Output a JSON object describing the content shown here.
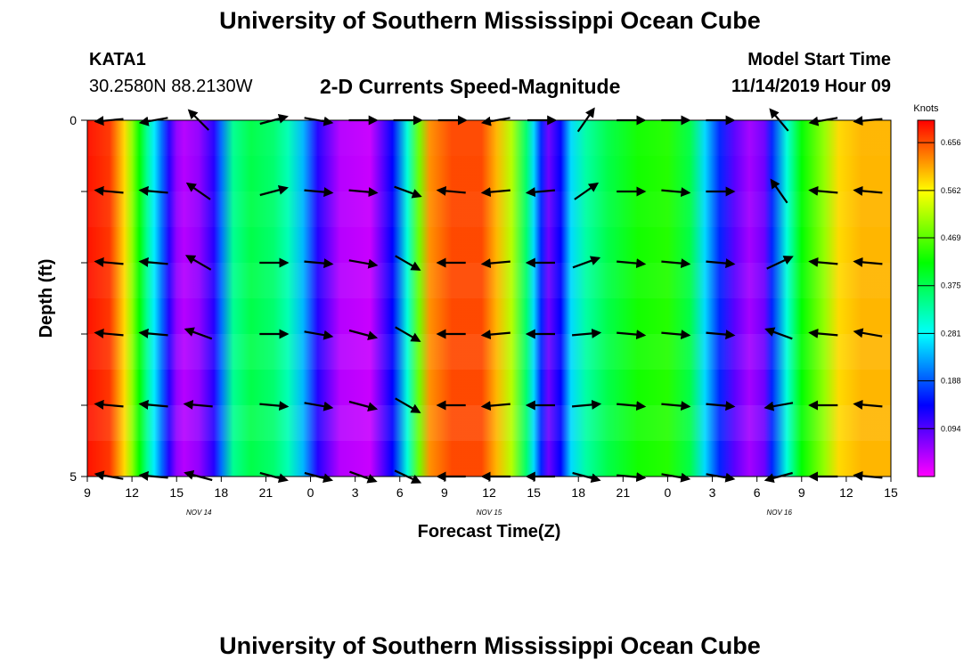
{
  "header": {
    "title": "University of Southern Mississippi Ocean Cube",
    "station": "KATA1",
    "coords": "30.2580N 88.2130W",
    "chart_title": "2-D Currents Speed-Magnitude",
    "model_label": "Model Start Time",
    "model_time": "11/14/2019 Hour 09"
  },
  "footer": {
    "title": "University of Southern Mississippi Ocean Cube"
  },
  "chart_data": {
    "type": "heatmap",
    "title": "2-D Currents Speed-Magnitude",
    "xlabel": "Forecast Time(Z)",
    "ylabel": "Depth (ft)",
    "x_hours": [
      0,
      54
    ],
    "x_ticks": [
      "9",
      "12",
      "15",
      "18",
      "21",
      "0",
      "3",
      "6",
      "9",
      "12",
      "15",
      "18",
      "21",
      "0",
      "3",
      "6",
      "9",
      "12",
      "15"
    ],
    "date_labels": [
      {
        "label": "NOV 14",
        "hour": 7.5
      },
      {
        "label": "NOV 15",
        "hour": 27
      },
      {
        "label": "NOV 16",
        "hour": 46.5
      }
    ],
    "y_ticks": [
      0,
      5
    ],
    "ylim": [
      0,
      5
    ],
    "colorbar": {
      "title": "Knots",
      "ticks": [
        0.656,
        0.562,
        0.469,
        0.375,
        0.281,
        0.188,
        0.094
      ],
      "min": 0.0,
      "max": 0.7
    },
    "speed_profile": [
      {
        "h": 0.0,
        "v": 0.69
      },
      {
        "h": 1.5,
        "v": 0.67
      },
      {
        "h": 2.5,
        "v": 0.58
      },
      {
        "h": 3.0,
        "v": 0.5
      },
      {
        "h": 3.5,
        "v": 0.42
      },
      {
        "h": 4.0,
        "v": 0.34
      },
      {
        "h": 4.5,
        "v": 0.27
      },
      {
        "h": 5.0,
        "v": 0.2
      },
      {
        "h": 5.5,
        "v": 0.12
      },
      {
        "h": 6.0,
        "v": 0.06
      },
      {
        "h": 6.5,
        "v": 0.04
      },
      {
        "h": 7.5,
        "v": 0.06
      },
      {
        "h": 8.5,
        "v": 0.12
      },
      {
        "h": 9.0,
        "v": 0.2
      },
      {
        "h": 9.8,
        "v": 0.34
      },
      {
        "h": 11.0,
        "v": 0.38
      },
      {
        "h": 12.5,
        "v": 0.36
      },
      {
        "h": 13.5,
        "v": 0.32
      },
      {
        "h": 14.5,
        "v": 0.24
      },
      {
        "h": 15.5,
        "v": 0.12
      },
      {
        "h": 17.0,
        "v": 0.04
      },
      {
        "h": 19.0,
        "v": 0.03
      },
      {
        "h": 20.5,
        "v": 0.14
      },
      {
        "h": 21.5,
        "v": 0.3
      },
      {
        "h": 22.3,
        "v": 0.48
      },
      {
        "h": 23.0,
        "v": 0.62
      },
      {
        "h": 24.5,
        "v": 0.66
      },
      {
        "h": 26.5,
        "v": 0.66
      },
      {
        "h": 27.5,
        "v": 0.6
      },
      {
        "h": 28.5,
        "v": 0.52
      },
      {
        "h": 29.5,
        "v": 0.36
      },
      {
        "h": 30.0,
        "v": 0.26
      },
      {
        "h": 30.5,
        "v": 0.16
      },
      {
        "h": 31.0,
        "v": 0.08
      },
      {
        "h": 31.8,
        "v": 0.14
      },
      {
        "h": 32.5,
        "v": 0.26
      },
      {
        "h": 33.5,
        "v": 0.33
      },
      {
        "h": 35.0,
        "v": 0.38
      },
      {
        "h": 37.0,
        "v": 0.43
      },
      {
        "h": 39.0,
        "v": 0.44
      },
      {
        "h": 40.5,
        "v": 0.38
      },
      {
        "h": 41.5,
        "v": 0.26
      },
      {
        "h": 42.5,
        "v": 0.16
      },
      {
        "h": 43.5,
        "v": 0.09
      },
      {
        "h": 44.5,
        "v": 0.05
      },
      {
        "h": 45.5,
        "v": 0.08
      },
      {
        "h": 46.0,
        "v": 0.16
      },
      {
        "h": 47.0,
        "v": 0.3
      },
      {
        "h": 48.0,
        "v": 0.42
      },
      {
        "h": 49.5,
        "v": 0.5
      },
      {
        "h": 50.5,
        "v": 0.58
      },
      {
        "h": 52.0,
        "v": 0.6
      },
      {
        "h": 54.0,
        "v": 0.6
      }
    ],
    "vector_depths": [
      0,
      1,
      2,
      3,
      4,
      5
    ],
    "vector_columns": [
      {
        "h": 1.5,
        "dir": [
          185,
          175,
          175,
          175,
          175,
          170
        ]
      },
      {
        "h": 4.5,
        "dir": [
          190,
          175,
          175,
          175,
          175,
          175
        ]
      },
      {
        "h": 7.5,
        "dir": [
          135,
          145,
          150,
          160,
          175,
          165
        ]
      },
      {
        "h": 12.5,
        "dir": [
          15,
          15,
          0,
          0,
          355,
          345
        ]
      },
      {
        "h": 15.5,
        "dir": [
          350,
          355,
          355,
          350,
          350,
          345
        ]
      },
      {
        "h": 18.5,
        "dir": [
          0,
          355,
          350,
          345,
          345,
          340
        ]
      },
      {
        "h": 21.5,
        "dir": [
          0,
          340,
          330,
          330,
          330,
          335
        ]
      },
      {
        "h": 24.5,
        "dir": [
          0,
          175,
          180,
          180,
          180,
          180
        ]
      },
      {
        "h": 27.5,
        "dir": [
          190,
          185,
          185,
          185,
          185,
          180
        ]
      },
      {
        "h": 30.5,
        "dir": [
          0,
          185,
          180,
          180,
          180,
          180
        ]
      },
      {
        "h": 33.5,
        "dir": [
          55,
          35,
          20,
          5,
          5,
          345
        ]
      },
      {
        "h": 36.5,
        "dir": [
          0,
          0,
          355,
          355,
          355,
          355
        ]
      },
      {
        "h": 39.5,
        "dir": [
          0,
          355,
          355,
          355,
          355,
          350
        ]
      },
      {
        "h": 42.5,
        "dir": [
          0,
          0,
          355,
          355,
          355,
          350
        ]
      },
      {
        "h": 46.5,
        "dir": [
          130,
          125,
          25,
          160,
          190,
          195
        ]
      },
      {
        "h": 49.5,
        "dir": [
          190,
          175,
          175,
          175,
          180,
          180
        ]
      },
      {
        "h": 52.5,
        "dir": [
          185,
          175,
          175,
          170,
          175,
          175
        ]
      }
    ]
  }
}
